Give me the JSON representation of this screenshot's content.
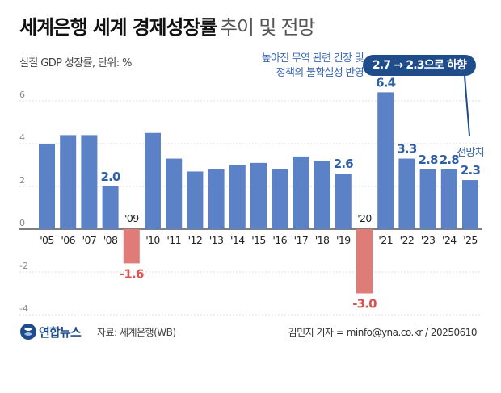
{
  "header": {
    "title_bold": "세계은행 세계 경제성장률",
    "title_light": "추이 및 전망"
  },
  "unit_label": "실질 GDP 성장률, 단위: %",
  "annotation": {
    "note_line1": "높아진 무역 관련 긴장 및",
    "note_line2": "정책의 불확실성 반영",
    "badge": "2.7 → 2.3으로 하향",
    "forecast_label": "전망치"
  },
  "colors": {
    "positive_bar": "#5b82c6",
    "negative_bar": "#e07c78",
    "positive_label": "#2f5fa5",
    "negative_label": "#d9534f",
    "badge_bg": "#1f4d8c"
  },
  "footer": {
    "logo": "연합뉴스",
    "logo_icon": "yonhap-logo-icon",
    "source": "자료: 세계은행(WB)",
    "credit": "김민지 기자 = minfo@yna.co.kr / 20250610"
  },
  "chart_data": {
    "type": "bar",
    "categories": [
      "'05",
      "'06",
      "'07",
      "'08",
      "'09",
      "'10",
      "'11",
      "'12",
      "'13",
      "'14",
      "'15",
      "'16",
      "'17",
      "'18",
      "'19",
      "'20",
      "'21",
      "'22",
      "'23",
      "'24",
      "'25"
    ],
    "values": [
      4.0,
      4.4,
      4.4,
      2.0,
      -1.6,
      4.5,
      3.3,
      2.7,
      2.8,
      3.0,
      3.1,
      2.8,
      3.4,
      3.2,
      2.6,
      -3.0,
      6.4,
      3.3,
      2.8,
      2.8,
      2.3
    ],
    "data_labels": [
      "",
      "",
      "",
      "2.0",
      "-1.6",
      "",
      "",
      "",
      "",
      "",
      "",
      "",
      "",
      "",
      "2.6",
      "-3.0",
      "6.4",
      "3.3",
      "2.8",
      "2.8",
      "2.3"
    ],
    "ylim": [
      -4,
      6
    ],
    "yticks": [
      "6",
      "4",
      "2",
      "0",
      "-2",
      "-4"
    ],
    "ytick_values": [
      6,
      4,
      2,
      0,
      -2,
      -4
    ],
    "grid": true
  }
}
